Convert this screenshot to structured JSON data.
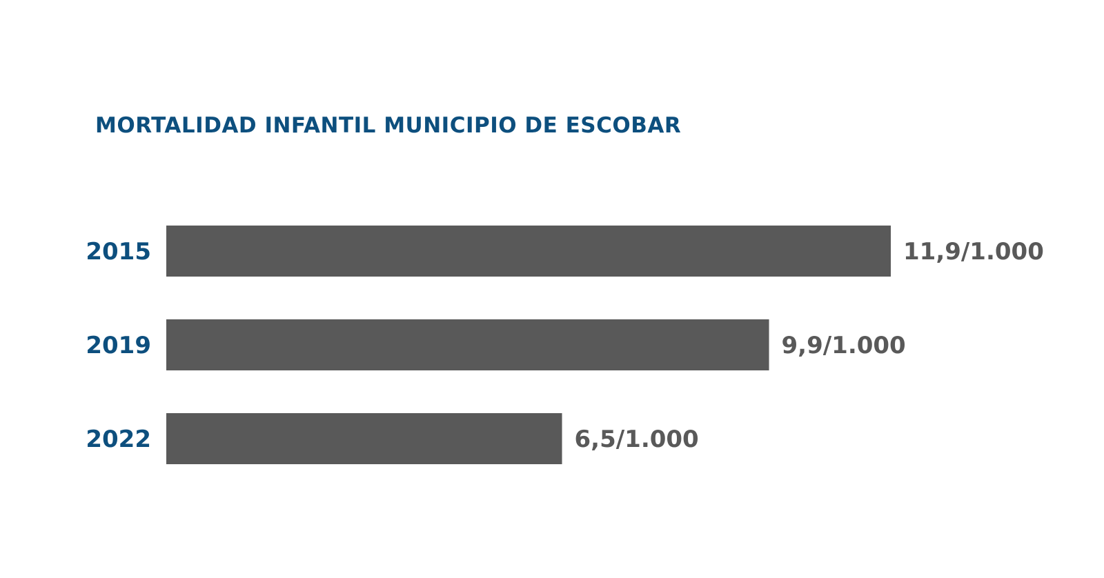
{
  "colors": {
    "title": "#0d4f7e",
    "category_label": "#0d4f7e",
    "bar": "#595959",
    "value_label": "#595959",
    "background": "#ffffff"
  },
  "chart_data": {
    "type": "bar",
    "orientation": "horizontal",
    "title": "MORTALIDAD INFANTIL MUNICIPIO DE ESCOBAR",
    "categories": [
      "2015",
      "2019",
      "2022"
    ],
    "values": [
      11.9,
      9.9,
      6.5
    ],
    "value_labels": [
      "11,9/1.000",
      "9,9/1.000",
      "6,5/1.000"
    ],
    "unit": "per 1.000",
    "xlim": [
      0,
      11.9
    ],
    "grid": false,
    "legend": "none"
  }
}
